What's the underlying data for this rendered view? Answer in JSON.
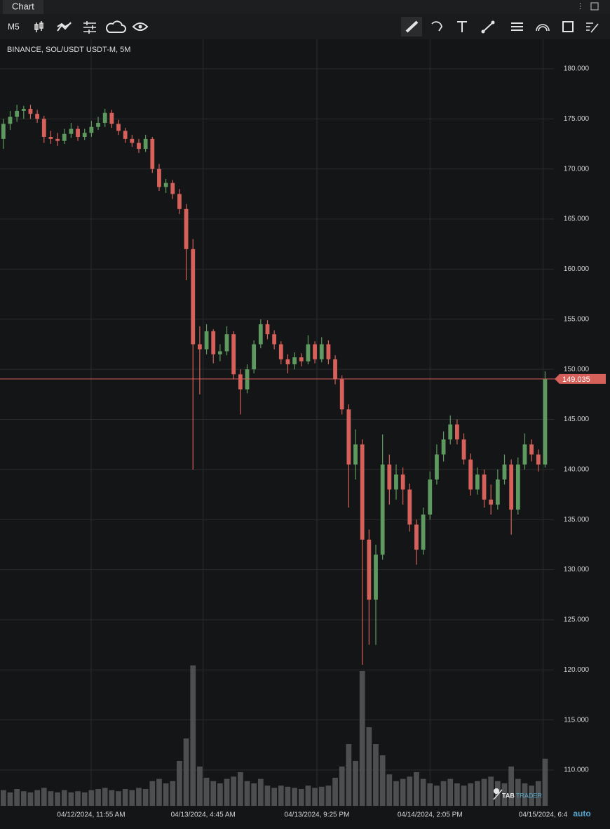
{
  "tab": "Chart",
  "toolbar": {
    "interval": "M5"
  },
  "watermark": {
    "part1": "TAB",
    "part2": "TRADER"
  },
  "scale_mode": "auto",
  "chart_data": {
    "type": "candlestick",
    "title": "BINANCE, SOL/USDT USDT-M, 5M",
    "up_color": "#5e9a5f",
    "down_color": "#d6605a",
    "volume_color": "#5a5c5e",
    "grid": true,
    "open": [
      173.0,
      174.5,
      175.2,
      175.8,
      176.0,
      175.5,
      175.0,
      173.2,
      173.0,
      172.8,
      173.5,
      174.0,
      173.2,
      173.6,
      174.2,
      174.6,
      175.6,
      174.5,
      173.8,
      173.0,
      172.6,
      172.0,
      173.0,
      170.0,
      168.2,
      168.6,
      167.5,
      166.0,
      162.0,
      152.5,
      152.0,
      153.8,
      151.5,
      151.8,
      153.5,
      149.5,
      148.0,
      150.0,
      152.5,
      154.5,
      153.5,
      152.5,
      151.0,
      150.5,
      151.2,
      150.8,
      152.5,
      151.0,
      152.5,
      151.0,
      149.0,
      146.0,
      140.5,
      142.5,
      133.0,
      127.0,
      131.5,
      140.5,
      138.0,
      139.5,
      138.0,
      134.5,
      132.0,
      135.5,
      139.0,
      141.5,
      143.0,
      144.5,
      143.0,
      141.0,
      138.0,
      139.5,
      137.0,
      136.5,
      139.0,
      140.5,
      136.0,
      140.5,
      142.5,
      141.5,
      140.5
    ],
    "high": [
      175.0,
      175.8,
      176.4,
      176.3,
      176.4,
      175.9,
      175.3,
      173.8,
      173.6,
      174.0,
      174.6,
      174.3,
      174.0,
      174.8,
      175.2,
      176.0,
      175.9,
      174.9,
      174.1,
      173.4,
      173.0,
      173.4,
      173.2,
      170.5,
      169.0,
      168.9,
      168.0,
      166.5,
      163.0,
      154.3,
      154.5,
      154.0,
      152.5,
      154.3,
      153.8,
      150.0,
      150.5,
      152.9,
      155.0,
      154.9,
      153.9,
      152.8,
      151.5,
      151.7,
      151.6,
      153.4,
      152.8,
      153.2,
      152.9,
      151.4,
      149.4,
      146.5,
      144.0,
      143.0,
      134.0,
      132.5,
      143.5,
      141.5,
      140.5,
      140.2,
      138.6,
      135.0,
      136.2,
      139.8,
      142.5,
      143.8,
      145.4,
      145.0,
      143.6,
      141.6,
      140.2,
      140.0,
      138.5,
      140.0,
      141.5,
      141.0,
      141.2,
      143.6,
      143.0,
      142.0,
      149.8
    ],
    "low": [
      172.0,
      173.9,
      174.7,
      175.0,
      175.0,
      174.6,
      172.6,
      172.5,
      172.3,
      172.5,
      173.1,
      172.8,
      172.9,
      173.2,
      173.9,
      174.2,
      174.1,
      173.4,
      172.6,
      172.2,
      171.6,
      171.7,
      169.6,
      167.8,
      167.6,
      167.0,
      165.5,
      158.9,
      140.0,
      147.5,
      151.5,
      150.6,
      150.8,
      151.4,
      149.0,
      145.5,
      147.6,
      149.6,
      152.1,
      153.0,
      152.0,
      150.5,
      149.6,
      150.0,
      150.3,
      150.5,
      150.6,
      150.7,
      150.5,
      148.5,
      145.5,
      136.2,
      139.0,
      120.5,
      122.5,
      122.5,
      131.0,
      136.5,
      137.0,
      136.5,
      133.8,
      130.5,
      131.5,
      135.0,
      138.5,
      140.8,
      142.5,
      142.5,
      140.5,
      137.4,
      137.5,
      136.2,
      135.5,
      136.0,
      138.5,
      133.5,
      135.5,
      140.0,
      140.8,
      139.8,
      140.2
    ],
    "close": [
      174.5,
      175.2,
      175.8,
      176.0,
      175.5,
      175.0,
      173.2,
      173.0,
      172.8,
      173.5,
      174.0,
      173.2,
      173.6,
      174.2,
      174.6,
      175.6,
      174.5,
      173.8,
      173.0,
      172.6,
      172.0,
      173.0,
      170.0,
      168.2,
      168.6,
      167.5,
      166.0,
      162.0,
      152.5,
      152.0,
      153.8,
      151.5,
      151.8,
      153.5,
      149.5,
      148.0,
      150.0,
      152.5,
      154.5,
      153.5,
      152.5,
      151.0,
      150.5,
      151.2,
      150.8,
      152.5,
      151.0,
      152.5,
      151.0,
      149.0,
      146.0,
      140.5,
      142.5,
      133.0,
      127.0,
      131.5,
      140.5,
      138.0,
      139.5,
      138.0,
      134.5,
      132.0,
      135.5,
      139.0,
      141.5,
      143.0,
      144.5,
      143.0,
      141.0,
      138.0,
      139.5,
      137.0,
      136.5,
      139.0,
      140.5,
      136.0,
      140.5,
      142.5,
      141.5,
      140.5,
      149.035
    ],
    "volume": [
      14,
      12,
      15,
      13,
      12,
      14,
      16,
      13,
      12,
      14,
      12,
      13,
      12,
      14,
      15,
      16,
      14,
      13,
      15,
      14,
      16,
      15,
      22,
      24,
      20,
      22,
      40,
      60,
      125,
      35,
      25,
      22,
      20,
      24,
      26,
      30,
      22,
      20,
      24,
      18,
      16,
      18,
      17,
      16,
      15,
      18,
      16,
      17,
      18,
      25,
      35,
      55,
      40,
      120,
      70,
      55,
      45,
      28,
      22,
      24,
      26,
      30,
      24,
      20,
      18,
      22,
      24,
      20,
      18,
      20,
      22,
      24,
      26,
      22,
      20,
      35,
      24,
      20,
      18,
      22,
      42
    ],
    "xlim": [
      -0.5,
      81.3
    ],
    "xticks": [
      {
        "value": 12.96,
        "label": "04/12/2024, 11:55 AM"
      },
      {
        "value": 29.5,
        "label": "04/13/2024, 4:45 AM"
      },
      {
        "value": 46.3,
        "label": "04/13/2024, 9:25 PM"
      },
      {
        "value": 63.0,
        "label": "04/14/2024, 2:05 PM"
      },
      {
        "value": 79.7,
        "label": "04/15/2024, 6:4"
      }
    ],
    "ylim": [
      106.43,
      182.94
    ],
    "yticks": [
      {
        "value": 110,
        "label": "110.000"
      },
      {
        "value": 115,
        "label": "115.000"
      },
      {
        "value": 120,
        "label": "120.000"
      },
      {
        "value": 125,
        "label": "125.000"
      },
      {
        "value": 130,
        "label": "130.000"
      },
      {
        "value": 135,
        "label": "135.000"
      },
      {
        "value": 140,
        "label": "140.000"
      },
      {
        "value": 145,
        "label": "145.000"
      },
      {
        "value": 150,
        "label": "150.000"
      },
      {
        "value": 155,
        "label": "155.000"
      },
      {
        "value": 160,
        "label": "160.000"
      },
      {
        "value": 165,
        "label": "165.000"
      },
      {
        "value": 170,
        "label": "170.000"
      },
      {
        "value": 175,
        "label": "175.000"
      },
      {
        "value": 180,
        "label": "180.000"
      }
    ],
    "last_price": {
      "value": 149.035,
      "label": "149.035",
      "color": "#d6605a"
    }
  }
}
